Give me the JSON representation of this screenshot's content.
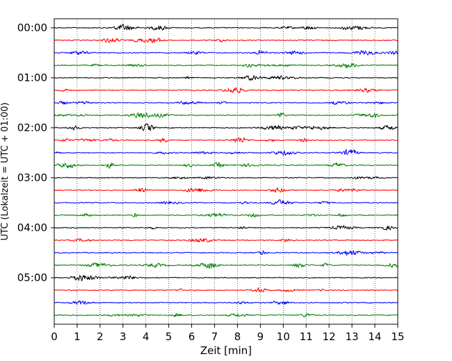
{
  "chart_data": {
    "type": "line",
    "title": "",
    "xlabel": "Zeit  [min]",
    "ylabel": "UTC (Lokalzeit = UTC + 01:00)",
    "xlim": [
      0,
      15
    ],
    "x_ticks": [
      "0",
      "1",
      "2",
      "3",
      "4",
      "5",
      "6",
      "7",
      "8",
      "9",
      "10",
      "11",
      "12",
      "13",
      "14",
      "15"
    ],
    "y_tick_labels": [
      "00:00",
      "01:00",
      "02:00",
      "03:00",
      "04:00",
      "05:00"
    ],
    "grid": "vertical dotted",
    "trace_colors": [
      "#000000",
      "#ff0000",
      "#0000ff",
      "#008000"
    ],
    "trace_count": 24,
    "trace_interval_minutes": 15
  }
}
